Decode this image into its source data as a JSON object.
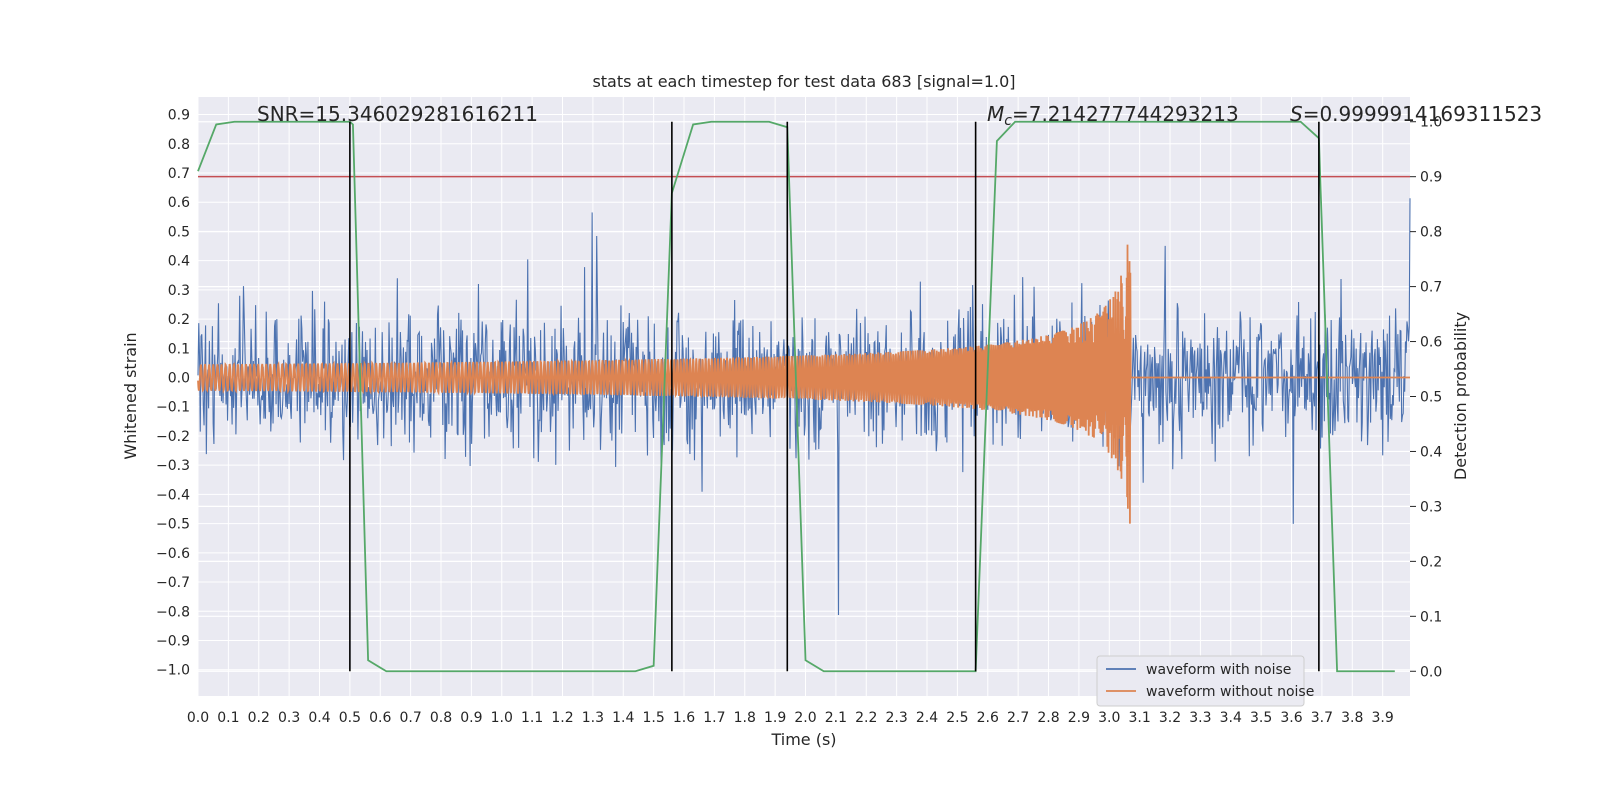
{
  "chart_data": {
    "type": "line",
    "title": "stats at each timestep for test data 683 [signal=1.0]",
    "xlabel": "Time (s)",
    "ylabel_left": "Whitened strain",
    "ylabel_right": "Detection probability",
    "xlim": [
      0.0,
      3.99
    ],
    "ylim_left": [
      -1.09,
      0.96
    ],
    "ylim_right": [
      -0.045,
      1.045
    ],
    "x_ticks": [
      0.0,
      0.1,
      0.2,
      0.3,
      0.4,
      0.5,
      0.6,
      0.7,
      0.8,
      0.9,
      1.0,
      1.1,
      1.2,
      1.3,
      1.4,
      1.5,
      1.6,
      1.7,
      1.8,
      1.9,
      2.0,
      2.1,
      2.2,
      2.3,
      2.4,
      2.5,
      2.6,
      2.7,
      2.8,
      2.9,
      3.0,
      3.1,
      3.2,
      3.3,
      3.4,
      3.5,
      3.6,
      3.7,
      3.8,
      3.9
    ],
    "x_tick_labels": [
      "0.0",
      "0.1",
      "0.2",
      "0.3",
      "0.4",
      "0.5",
      "0.6",
      "0.7",
      "0.8",
      "0.9",
      "1.0",
      "1.1",
      "1.2",
      "1.3",
      "1.4",
      "1.5",
      "1.6",
      "1.7",
      "1.8",
      "1.9",
      "2.0",
      "2.1",
      "2.2",
      "2.3",
      "2.4",
      "2.5",
      "2.6",
      "2.7",
      "2.8",
      "2.9",
      "3.0",
      "3.1",
      "3.2",
      "3.3",
      "3.4",
      "3.5",
      "3.6",
      "3.7",
      "3.8",
      "3.9"
    ],
    "y_left_ticks": [
      0.9,
      0.8,
      0.7,
      0.6,
      0.5,
      0.4,
      0.3,
      0.2,
      0.1,
      0.0,
      -0.1,
      -0.2,
      -0.3,
      -0.4,
      -0.5,
      -0.6,
      -0.7,
      -0.8,
      -0.9,
      -1.0
    ],
    "y_left_tick_labels": [
      "0.9",
      "0.8",
      "0.7",
      "0.6",
      "0.5",
      "0.4",
      "0.3",
      "0.2",
      "0.1",
      "0.0",
      "−0.1",
      "−0.2",
      "−0.3",
      "−0.4",
      "−0.5",
      "−0.6",
      "−0.7",
      "−0.8",
      "−0.9",
      "−1.0"
    ],
    "y_right_ticks": [
      1.0,
      0.9,
      0.8,
      0.7,
      0.6,
      0.5,
      0.4,
      0.3,
      0.2,
      0.1,
      0.0
    ],
    "y_right_tick_labels": [
      "1.0",
      "0.9",
      "0.8",
      "0.7",
      "0.6",
      "0.5",
      "0.4",
      "0.3",
      "0.2",
      "0.1",
      "0.0"
    ],
    "annotations": {
      "snr": "SNR=15.346029281616211",
      "mc_symbol": "M",
      "mc_sub": "c",
      "mc_value": "=7.214277744293213",
      "s_symbol": "S",
      "s_value": "=0.9999914169311523"
    },
    "threshold_prob": 0.9,
    "vlines_x": [
      0.5,
      1.56,
      1.94,
      2.56,
      3.69
    ],
    "series": [
      {
        "name": "waveform with noise",
        "color": "#4c72b0",
        "axis": "left",
        "kind": "noise",
        "x_range": [
          0.0,
          3.99
        ],
        "amplitude_range": [
          -0.97,
          0.87
        ]
      },
      {
        "name": "waveform without noise",
        "color": "#dd8452",
        "axis": "left",
        "kind": "chirp",
        "merger_x": 3.07,
        "peak_amplitude": [
          -0.5,
          0.46
        ]
      },
      {
        "name": "detection probability",
        "color": "#55a868",
        "axis": "right",
        "x": [
          0.0,
          0.06,
          0.12,
          0.5,
          0.51,
          0.56,
          0.62,
          1.44,
          1.5,
          1.56,
          1.63,
          1.69,
          1.88,
          1.94,
          2.0,
          2.06,
          2.56,
          2.63,
          2.69,
          3.63,
          3.69,
          3.75,
          3.81,
          3.94
        ],
        "y": [
          0.91,
          0.995,
          1.0,
          1.0,
          0.995,
          0.02,
          0.0,
          0.0,
          0.01,
          0.87,
          0.995,
          1.0,
          1.0,
          0.99,
          0.02,
          0.0,
          0.0,
          0.965,
          1.0,
          1.0,
          0.97,
          0.0,
          0.0,
          0.0
        ]
      }
    ],
    "legend": {
      "placement": "lower-right",
      "entries": [
        "waveform with noise",
        "waveform without noise"
      ]
    },
    "grid": true,
    "colors": {
      "background": "#eaeaf2",
      "grid": "#ffffff",
      "noise": "#4c72b0",
      "chirp": "#dd8452",
      "prob": "#55a868",
      "threshold": "#c44e52",
      "vline": "#000000"
    }
  }
}
